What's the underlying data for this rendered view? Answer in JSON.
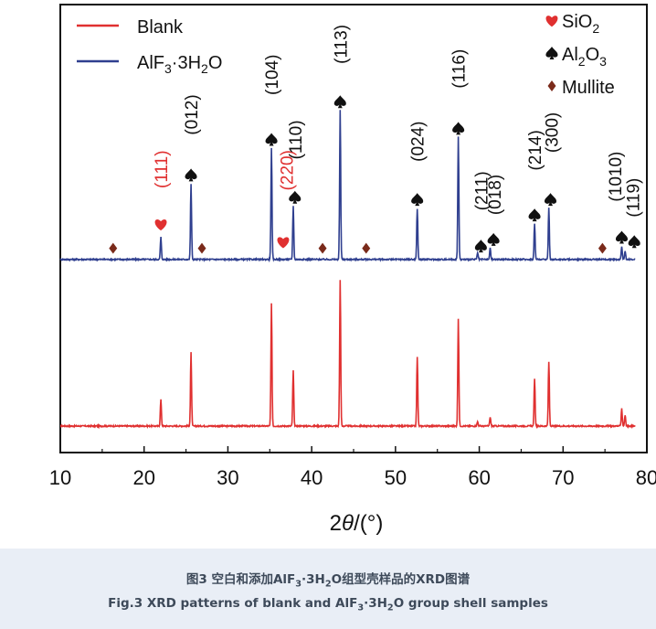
{
  "chart_data": {
    "type": "line",
    "xlabel": "2θ/(°)",
    "ylabel": "",
    "xlim": [
      10,
      80
    ],
    "xticks": [
      10,
      20,
      30,
      40,
      50,
      60,
      70,
      80
    ],
    "grid": false,
    "legend": {
      "placement": "top-left",
      "entries": [
        "Blank",
        "AlF3·3H2O"
      ]
    },
    "series": [
      {
        "name": "Blank",
        "color": "#e03030",
        "baseline": 0.0,
        "peaks": [
          {
            "x": 22.0,
            "h": 0.12
          },
          {
            "x": 25.6,
            "h": 0.33
          },
          {
            "x": 35.2,
            "h": 0.55
          },
          {
            "x": 37.8,
            "h": 0.25
          },
          {
            "x": 43.4,
            "h": 0.66
          },
          {
            "x": 52.6,
            "h": 0.31
          },
          {
            "x": 57.5,
            "h": 0.48
          },
          {
            "x": 59.8,
            "h": 0.02
          },
          {
            "x": 61.3,
            "h": 0.04
          },
          {
            "x": 66.6,
            "h": 0.21
          },
          {
            "x": 68.3,
            "h": 0.29
          },
          {
            "x": 77.0,
            "h": 0.08
          },
          {
            "x": 77.4,
            "h": 0.05
          }
        ]
      },
      {
        "name": "AlF3·3H2O",
        "color": "#2f3f8f",
        "baseline": 0.75,
        "peaks": [
          {
            "x": 22.0,
            "h": 0.1
          },
          {
            "x": 25.6,
            "h": 0.34
          },
          {
            "x": 35.2,
            "h": 0.5
          },
          {
            "x": 37.8,
            "h": 0.24
          },
          {
            "x": 43.4,
            "h": 0.67
          },
          {
            "x": 52.6,
            "h": 0.23
          },
          {
            "x": 57.5,
            "h": 0.55
          },
          {
            "x": 59.8,
            "h": 0.03
          },
          {
            "x": 61.3,
            "h": 0.05
          },
          {
            "x": 66.6,
            "h": 0.16
          },
          {
            "x": 68.3,
            "h": 0.23
          },
          {
            "x": 77.0,
            "h": 0.06
          },
          {
            "x": 77.4,
            "h": 0.04
          }
        ]
      }
    ],
    "annotations": {
      "hkl": [
        {
          "label": "(111)",
          "x": 22.0,
          "h": 0.32,
          "color": "#e03030"
        },
        {
          "label": "(012)",
          "x": 25.6,
          "h": 0.56,
          "color": "#111111"
        },
        {
          "label": "(104)",
          "x": 35.2,
          "h": 0.74,
          "color": "#111111"
        },
        {
          "label": "(220)",
          "x": 37.0,
          "h": 0.31,
          "color": "#e03030"
        },
        {
          "label": "(110)",
          "x": 38.0,
          "h": 0.45,
          "color": "#111111"
        },
        {
          "label": "(113)",
          "x": 43.4,
          "h": 0.88,
          "color": "#111111"
        },
        {
          "label": "(024)",
          "x": 52.6,
          "h": 0.44,
          "color": "#111111"
        },
        {
          "label": "(116)",
          "x": 57.5,
          "h": 0.77,
          "color": "#111111"
        },
        {
          "label": "(211)",
          "x": 60.2,
          "h": 0.22,
          "color": "#111111"
        },
        {
          "label": "(018)",
          "x": 61.8,
          "h": 0.2,
          "color": "#111111"
        },
        {
          "label": "(214)",
          "x": 66.6,
          "h": 0.4,
          "color": "#111111"
        },
        {
          "label": "(300)",
          "x": 68.6,
          "h": 0.48,
          "color": "#111111"
        },
        {
          "label": "(1010)",
          "x": 76.2,
          "h": 0.26,
          "color": "#111111"
        },
        {
          "label": "(119)",
          "x": 78.3,
          "h": 0.19,
          "color": "#111111"
        }
      ],
      "markers": [
        {
          "type": "heart",
          "x": 22.0,
          "h": 0.16
        },
        {
          "type": "heart",
          "x": 36.6,
          "h": 0.08
        },
        {
          "type": "spade",
          "x": 25.6,
          "h": 0.38
        },
        {
          "type": "spade",
          "x": 35.2,
          "h": 0.54
        },
        {
          "type": "spade",
          "x": 38.0,
          "h": 0.28
        },
        {
          "type": "spade",
          "x": 43.4,
          "h": 0.71
        },
        {
          "type": "spade",
          "x": 52.6,
          "h": 0.27
        },
        {
          "type": "spade",
          "x": 57.5,
          "h": 0.59
        },
        {
          "type": "spade",
          "x": 60.2,
          "h": 0.06
        },
        {
          "type": "spade",
          "x": 61.7,
          "h": 0.09
        },
        {
          "type": "spade",
          "x": 66.6,
          "h": 0.2
        },
        {
          "type": "spade",
          "x": 68.5,
          "h": 0.27
        },
        {
          "type": "spade",
          "x": 77.0,
          "h": 0.1
        },
        {
          "type": "spade",
          "x": 78.5,
          "h": 0.08
        },
        {
          "type": "diamond",
          "x": 16.3,
          "h": 0.05
        },
        {
          "type": "diamond",
          "x": 26.9,
          "h": 0.05
        },
        {
          "type": "diamond",
          "x": 41.3,
          "h": 0.05
        },
        {
          "type": "diamond",
          "x": 46.5,
          "h": 0.05
        },
        {
          "type": "diamond",
          "x": 74.7,
          "h": 0.05
        }
      ],
      "phase_legend": [
        {
          "type": "heart",
          "label": "SiO",
          "sub": "2",
          "color": "#e03030"
        },
        {
          "type": "spade",
          "label": "Al",
          "sub": "2",
          "tail": "O",
          "sub2": "3",
          "color": "#111111"
        },
        {
          "type": "diamond",
          "label": "Mullite",
          "color": "#111111"
        }
      ]
    },
    "colors": {
      "heart": "#e03030",
      "spade": "#111111",
      "diamond": "#7a2a1a"
    }
  },
  "caption": {
    "cn_pre": "图3 空白和添加AlF",
    "cn_s1": "3",
    "cn_mid": "·3H",
    "cn_s2": "2",
    "cn_post": "O组型壳样品的XRD图谱",
    "en_pre": "Fig.3 XRD patterns of blank and AlF",
    "en_s1": "3",
    "en_mid": "·3H",
    "en_s2": "2",
    "en_post": "O group shell samples"
  }
}
